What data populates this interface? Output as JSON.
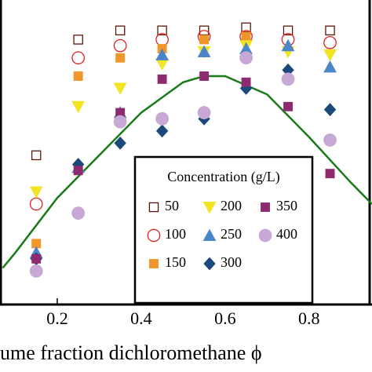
{
  "chart_data": {
    "type": "scatter",
    "x_label": "ume fraction dichloromethane ϕ",
    "xlim": [
      0.0636,
      0.95
    ],
    "ylim": [
      0,
      1
    ],
    "xticks": [
      0.2,
      0.4,
      0.6,
      0.8
    ],
    "legend_title": "Concentration (g/L)",
    "legend_position": "lower center",
    "series": [
      {
        "name": "50",
        "color": "#5a1a0a",
        "marker": "open-square",
        "x": [
          0.15,
          0.25,
          0.35,
          0.45,
          0.55,
          0.65,
          0.75,
          0.85
        ],
        "values": [
          0.49,
          0.87,
          0.9,
          0.9,
          0.9,
          0.91,
          0.9,
          0.9
        ]
      },
      {
        "name": "100",
        "color": "#e02020",
        "marker": "open-circle",
        "x": [
          0.15,
          0.25,
          0.35,
          0.45,
          0.55,
          0.65,
          0.75,
          0.85
        ],
        "values": [
          0.33,
          0.81,
          0.85,
          0.87,
          0.88,
          0.88,
          0.87,
          0.86
        ]
      },
      {
        "name": "150",
        "color": "#f0962a",
        "marker": "square",
        "x": [
          0.15,
          0.25,
          0.35,
          0.45,
          0.55,
          0.65,
          0.75,
          0.85
        ],
        "values": [
          0.2,
          0.75,
          0.81,
          0.84,
          0.87,
          0.88,
          null,
          null
        ]
      },
      {
        "name": "200",
        "color": "#f2e422",
        "marker": "triangle-down",
        "x": [
          0.15,
          0.25,
          0.35,
          0.45,
          0.55,
          0.65,
          0.75,
          0.85
        ],
        "values": [
          0.37,
          0.65,
          0.71,
          0.79,
          0.83,
          0.85,
          0.83,
          0.82
        ]
      },
      {
        "name": "250",
        "color": "#4a86c8",
        "marker": "triangle-up",
        "x": [
          0.15,
          0.25,
          0.35,
          0.45,
          0.55,
          0.65,
          0.75,
          0.85
        ],
        "values": [
          0.17,
          0.45,
          0.63,
          0.82,
          0.83,
          0.84,
          0.85,
          0.78
        ]
      },
      {
        "name": "300",
        "color": "#1b4a7a",
        "marker": "diamond",
        "x": [
          0.15,
          0.25,
          0.35,
          0.45,
          0.55,
          0.65,
          0.75,
          0.85
        ],
        "values": [
          0.15,
          0.46,
          0.53,
          0.57,
          0.61,
          0.71,
          0.77,
          0.64
        ]
      },
      {
        "name": "350",
        "color": "#8e2a70",
        "marker": "square",
        "x": [
          0.15,
          0.25,
          0.35,
          0.45,
          0.55,
          0.65,
          0.75,
          0.85
        ],
        "values": [
          0.15,
          0.44,
          0.63,
          0.74,
          0.75,
          0.73,
          0.65,
          0.43
        ]
      },
      {
        "name": "400",
        "color": "#c8a8d4",
        "marker": "circle",
        "x": [
          0.15,
          0.25,
          0.35,
          0.45,
          0.55,
          0.65,
          0.75,
          0.85
        ],
        "values": [
          0.11,
          0.3,
          0.6,
          0.61,
          0.63,
          0.81,
          0.74,
          0.54
        ]
      }
    ],
    "fit": {
      "color": "#1a7a1a",
      "x": [
        0.07,
        0.1,
        0.2,
        0.3,
        0.4,
        0.5,
        0.55,
        0.6,
        0.7,
        0.8,
        0.9,
        0.95
      ],
      "values": [
        0.12,
        0.17,
        0.35,
        0.49,
        0.63,
        0.73,
        0.75,
        0.75,
        0.69,
        0.55,
        0.4,
        0.33
      ]
    }
  }
}
